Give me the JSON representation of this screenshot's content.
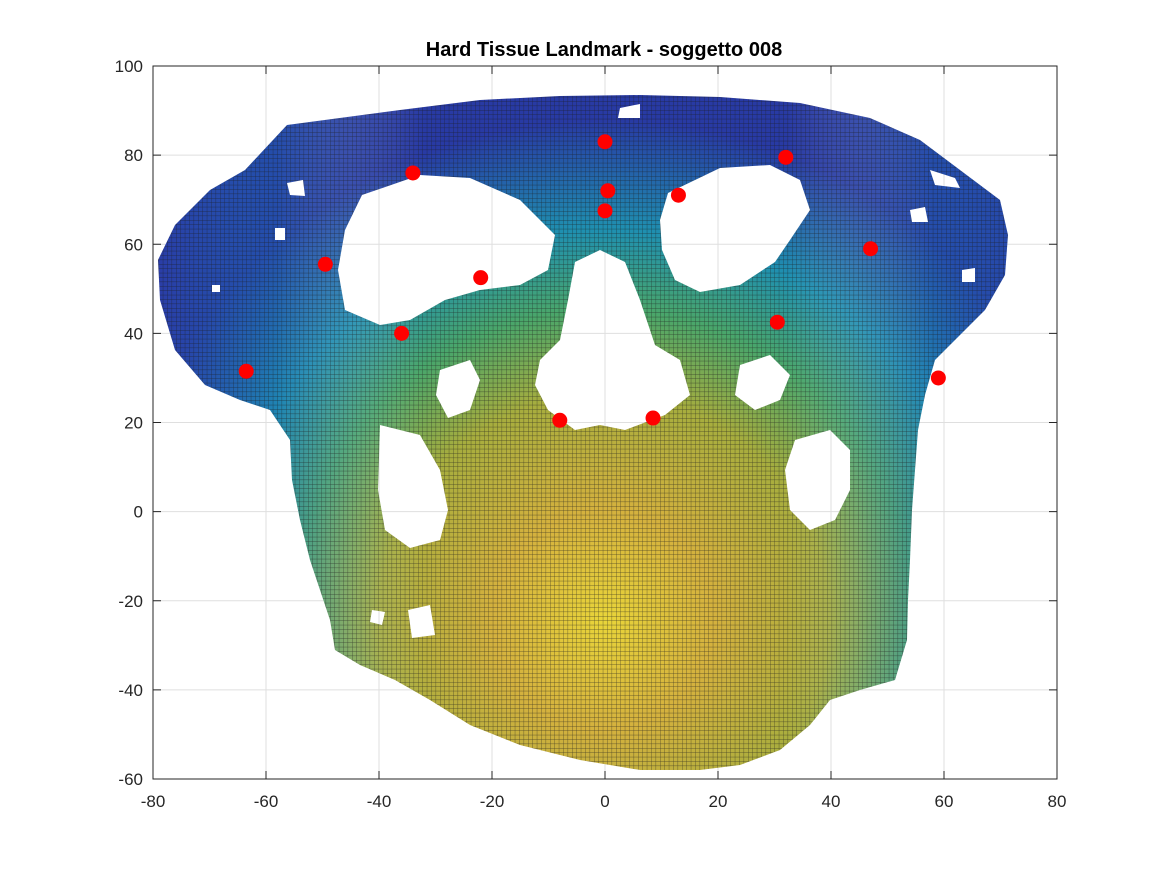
{
  "chart_data": {
    "type": "scatter",
    "title": "Hard Tissue Landmark - soggetto 008",
    "xlabel": "",
    "ylabel": "",
    "xlim": [
      -80,
      80
    ],
    "ylim": [
      -60,
      100
    ],
    "x_ticks": [
      -80,
      -60,
      -40,
      -20,
      0,
      20,
      40,
      60,
      80
    ],
    "y_ticks": [
      -60,
      -40,
      -20,
      0,
      20,
      40,
      60,
      80,
      100
    ],
    "grid": true,
    "background_surface": "skull hard-tissue surface mesh (frontal view) colored by depth, blue (posterior) to yellow (anterior)",
    "landmark_color": "#ff0000",
    "surface_colors": {
      "far": "#2a3fa8",
      "mid_far": "#1f8fb5",
      "mid": "#3aa572",
      "mid_near": "#b9b23a",
      "near": "#e9c93a",
      "warm": "#d9a23a"
    },
    "landmarks": [
      {
        "x": 0,
        "y": 83
      },
      {
        "x": 32,
        "y": 79.5
      },
      {
        "x": -34,
        "y": 76
      },
      {
        "x": 0.5,
        "y": 72
      },
      {
        "x": 13,
        "y": 71
      },
      {
        "x": 0,
        "y": 67.5
      },
      {
        "x": 47,
        "y": 59
      },
      {
        "x": -49.5,
        "y": 55.5
      },
      {
        "x": -22,
        "y": 52.5
      },
      {
        "x": 30.5,
        "y": 42.5
      },
      {
        "x": -36,
        "y": 40
      },
      {
        "x": -63.5,
        "y": 31.5
      },
      {
        "x": 59,
        "y": 30
      },
      {
        "x": -8,
        "y": 20.5
      },
      {
        "x": 8.5,
        "y": 21
      }
    ]
  }
}
